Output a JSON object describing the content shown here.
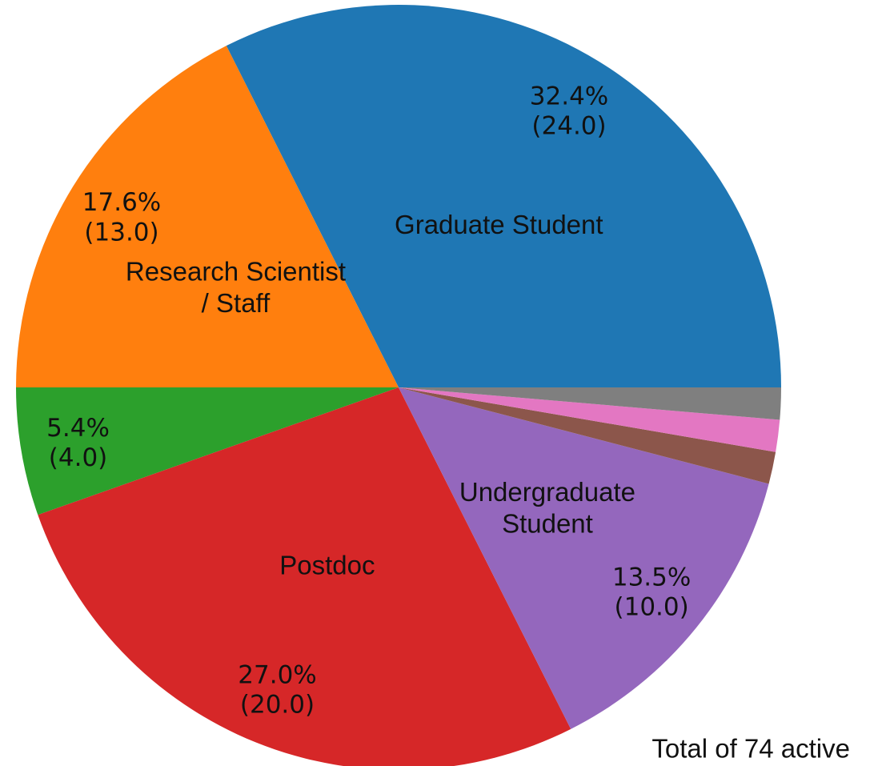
{
  "chart_data": {
    "type": "pie",
    "categories": [
      "Graduate Student",
      "Research Scientist\n/ Staff",
      null,
      "Postdoc",
      "Undergraduate\nStudent",
      null,
      null,
      null
    ],
    "values": [
      24,
      13,
      4,
      20,
      10,
      1,
      1,
      1
    ],
    "value_labels": [
      "32.4%\n(24.0)",
      "17.6%\n(13.0)",
      "5.4%\n(4.0)",
      "27.0%\n(20.0)",
      "13.5%\n(10.0)",
      null,
      null,
      null
    ],
    "colors": [
      "#1f77b4",
      "#ff7f0e",
      "#2ca02c",
      "#d62728",
      "#9467bd",
      "#8c564b",
      "#e377c2",
      "#7f7f7f"
    ],
    "annotation": "Total of 74 active"
  }
}
